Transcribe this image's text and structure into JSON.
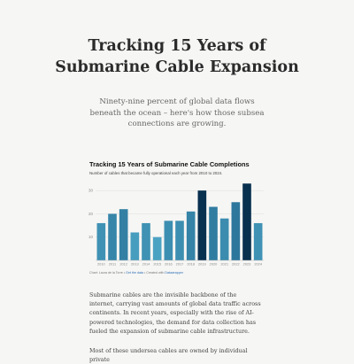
{
  "article": {
    "headline": "Tracking 15 Years of Submarine Cable Expansion",
    "deck": "Ninety-nine percent of global data flows beneath the ocean – here's how those subsea connections are growing.",
    "paragraphs": [
      "Submarine cables are the invisible backbone of the internet, carrying vast amounts of global data traffic across continents. In recent years, especially with the rise of AI-powered technologies, the demand for data collection has fueled the expansion of submarine cable infrastructure.",
      "Most of these undersea cables are owned by individual private"
    ]
  },
  "credit": {
    "prefix": "Chart: Laura de la Torre •",
    "data_link": "Get the data",
    "mid": "• Created with",
    "tool_link": "Datawrapper"
  },
  "chart_data": {
    "type": "bar",
    "title": "Tracking 15 Years of Submarine Cable Completions",
    "subtitle": "Number of cables that became fully operational each year from 2010 to 2024.",
    "categories": [
      "2010",
      "2011",
      "2012",
      "2013",
      "2014",
      "2015",
      "2016",
      "2017",
      "2018",
      "2019",
      "2020",
      "2021",
      "2022",
      "2023",
      "2024"
    ],
    "values": [
      16,
      20,
      22,
      12,
      16,
      10,
      17,
      17,
      21,
      30,
      23,
      18,
      25,
      33,
      16
    ],
    "highlight": [
      false,
      false,
      false,
      false,
      false,
      false,
      false,
      false,
      false,
      true,
      false,
      false,
      false,
      true,
      false
    ],
    "yticks": [
      10,
      20,
      30
    ],
    "ylim": [
      0,
      35
    ],
    "grid": true,
    "colors": {
      "low": "#4ba3c3",
      "high": "#0d4a74",
      "highlight": "#08304f",
      "axis_text": "#888888",
      "grid": "#dddddd"
    }
  }
}
